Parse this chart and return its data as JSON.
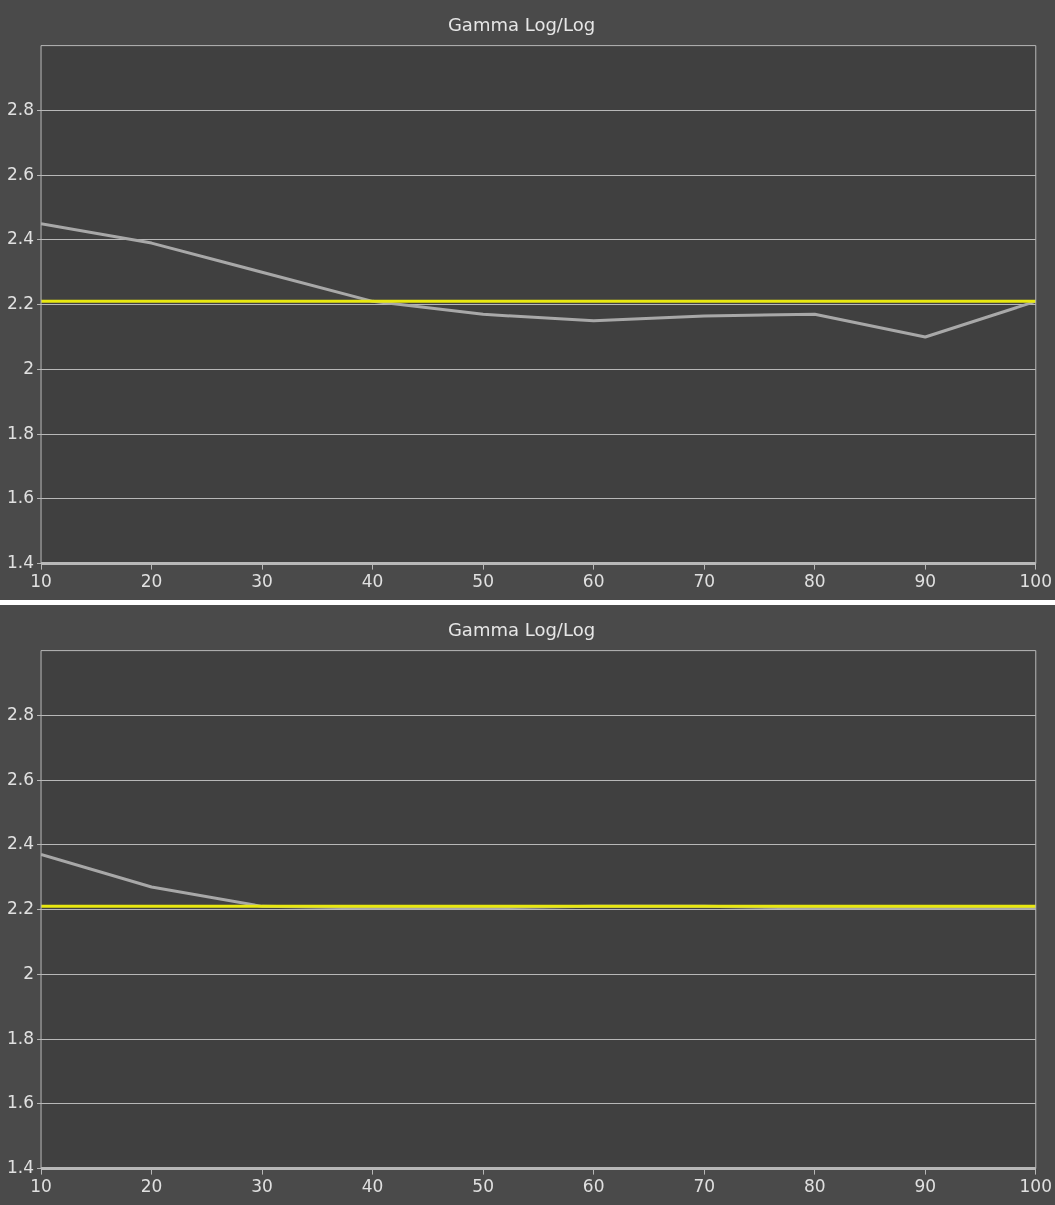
{
  "chart_data": [
    {
      "type": "line",
      "title": "Gamma Log/Log",
      "x": [
        10,
        20,
        30,
        40,
        50,
        60,
        70,
        80,
        90,
        100
      ],
      "series": [
        {
          "color": "#a8a8a8",
          "values": [
            2.45,
            2.39,
            2.3,
            2.21,
            2.17,
            2.15,
            2.165,
            2.17,
            2.1,
            2.21
          ]
        }
      ],
      "xlim": [
        10,
        100
      ],
      "xticks": [
        10,
        20,
        30,
        40,
        50,
        60,
        70,
        80,
        90,
        100
      ],
      "ylim": [
        1.4,
        3.0
      ],
      "yticks": [
        1.4,
        1.6,
        1.8,
        2,
        2.2,
        2.4,
        2.6,
        2.8
      ],
      "ref_lines": [
        {
          "axis": "y",
          "value": 2.21,
          "color": "#e8e810"
        }
      ],
      "grid": "y",
      "marker": "none",
      "line_style": "solid"
    },
    {
      "type": "line",
      "title": "Gamma Log/Log",
      "x": [
        10,
        20,
        30,
        40,
        50,
        60,
        70,
        80,
        90,
        100
      ],
      "series": [
        {
          "color": "#a8a8a8",
          "values": [
            2.37,
            2.27,
            2.21,
            2.205,
            2.205,
            2.21,
            2.21,
            2.205,
            2.205,
            2.205
          ]
        }
      ],
      "xlim": [
        10,
        100
      ],
      "xticks": [
        10,
        20,
        30,
        40,
        50,
        60,
        70,
        80,
        90,
        100
      ],
      "ylim": [
        1.4,
        3.0
      ],
      "yticks": [
        1.4,
        1.6,
        1.8,
        2,
        2.2,
        2.4,
        2.6,
        2.8
      ],
      "ref_lines": [
        {
          "axis": "y",
          "value": 2.21,
          "color": "#e8e810"
        }
      ],
      "grid": "y",
      "marker": "none",
      "line_style": "solid"
    }
  ]
}
